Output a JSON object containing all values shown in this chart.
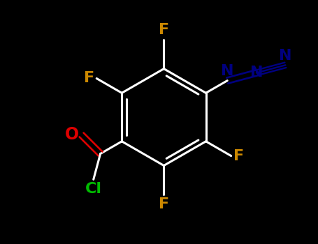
{
  "background_color": "#000000",
  "bond_color": "#ffffff",
  "bond_lw": 2.2,
  "F_color": "#cc8800",
  "F_fontsize": 16,
  "O_color": "#dd0000",
  "O_fontsize": 17,
  "Cl_color": "#00bb00",
  "Cl_fontsize": 16,
  "N_color": "#000080",
  "N_fontsize": 16,
  "figsize": [
    4.55,
    3.5
  ],
  "dpi": 100,
  "xlim": [
    -2.8,
    3.2
  ],
  "ylim": [
    -2.5,
    2.5
  ]
}
